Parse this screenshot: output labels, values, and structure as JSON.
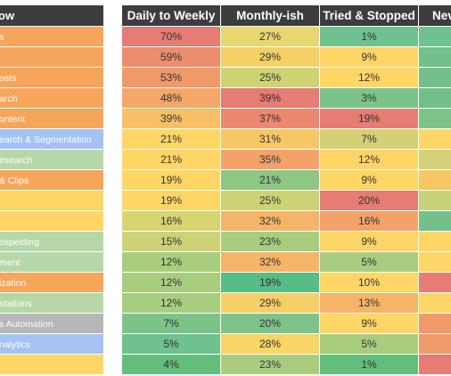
{
  "chart_data": {
    "type": "heatmap",
    "left_header": "ow",
    "columns": [
      "Daily to Weekly",
      "Monthly-ish",
      "Tried & Stopped",
      "Nev"
    ],
    "rows": [
      {
        "label": "s",
        "values": [
          "70%",
          "27%",
          "1%",
          ""
        ],
        "colors": [
          "#e67c73",
          "#e8d671",
          "#6fc190",
          "#6fc190"
        ],
        "label_color": "#f5a65b"
      },
      {
        "label": "",
        "values": [
          "59%",
          "29%",
          "9%",
          ""
        ],
        "colors": [
          "#ee8d6e",
          "#f5d067",
          "#ffd666",
          "#73c08a"
        ],
        "label_color": "#f5a65b"
      },
      {
        "label": "osts",
        "values": [
          "53%",
          "25%",
          "12%",
          ""
        ],
        "colors": [
          "#f09a6a",
          "#cfd373",
          "#ffd666",
          "#73c08a"
        ],
        "label_color": "#f5a65b"
      },
      {
        "label": "arch",
        "values": [
          "48%",
          "39%",
          "3%",
          ""
        ],
        "colors": [
          "#f4a768",
          "#e67c73",
          "#7cc38a",
          "#73c08a"
        ],
        "label_color": "#f5a65b"
      },
      {
        "label": "ontent",
        "values": [
          "39%",
          "37%",
          "19%",
          ""
        ],
        "colors": [
          "#f9bf66",
          "#ec886f",
          "#e67c73",
          "#7ec48a"
        ],
        "label_color": "#f5a65b"
      },
      {
        "label": "earch & Segmentation",
        "values": [
          "21%",
          "31%",
          "7%",
          ""
        ],
        "colors": [
          "#ffd666",
          "#f7c766",
          "#d4d073",
          "#ffd666"
        ],
        "label_color": "#a4c2f4"
      },
      {
        "label": "esearch",
        "values": [
          "21%",
          "35%",
          "12%",
          ""
        ],
        "colors": [
          "#ffd666",
          "#f4a368",
          "#ffd666",
          "#d6d27a"
        ],
        "label_color": "#b6d7a8"
      },
      {
        "label": "& Clips",
        "values": [
          "19%",
          "21%",
          "9%",
          ""
        ],
        "colors": [
          "#ffd666",
          "#8ec684",
          "#ffd666",
          "#f7c766"
        ],
        "label_color": "#f5a65b"
      },
      {
        "label": "",
        "values": [
          "19%",
          "25%",
          "20%",
          ""
        ],
        "colors": [
          "#ffd666",
          "#cdd374",
          "#e67c73",
          "#c9d179"
        ],
        "label_color": "#ffd666"
      },
      {
        "label": "",
        "values": [
          "16%",
          "32%",
          "16%",
          ""
        ],
        "colors": [
          "#d8d470",
          "#f5b467",
          "#f4a368",
          "#73c08a"
        ],
        "label_color": "#ffd666"
      },
      {
        "label": "ospecting",
        "values": [
          "15%",
          "23%",
          "9%",
          ""
        ],
        "colors": [
          "#cdd374",
          "#a9cd7e",
          "#ffd666",
          "#ffd666"
        ],
        "label_color": "#b6d7a8"
      },
      {
        "label": "ment",
        "values": [
          "12%",
          "32%",
          "5%",
          ""
        ],
        "colors": [
          "#a9cd7e",
          "#f5b467",
          "#a9cd7e",
          "#ffd666"
        ],
        "label_color": "#b6d7a8"
      },
      {
        "label": "ization",
        "values": [
          "12%",
          "19%",
          "10%",
          ""
        ],
        "colors": [
          "#a9cd7e",
          "#56bc88",
          "#ffd666",
          "#e67c73"
        ],
        "label_color": "#f5a65b"
      },
      {
        "label": "ntations",
        "values": [
          "12%",
          "29%",
          "13%",
          ""
        ],
        "colors": [
          "#a9cd7e",
          "#f5d067",
          "#f6b466",
          "#ffd666"
        ],
        "label_color": "#b6d7a8"
      },
      {
        "label": "s Automation",
        "values": [
          "7%",
          "20%",
          "9%",
          ""
        ],
        "colors": [
          "#7cc38a",
          "#7ec48a",
          "#ffd666",
          "#f09a6a"
        ],
        "label_color": "#b7b7b7"
      },
      {
        "label": "nalytics",
        "values": [
          "5%",
          "28%",
          "5%",
          ""
        ],
        "colors": [
          "#6fc190",
          "#f7d567",
          "#a9cd7e",
          "#f09a6a"
        ],
        "label_color": "#a4c2f4"
      },
      {
        "label": "",
        "values": [
          "4%",
          "23%",
          "1%",
          ""
        ],
        "colors": [
          "#63be7b",
          "#a9cd7e",
          "#63be7b",
          "#e67c73"
        ],
        "label_color": "#ffd666"
      }
    ],
    "colors": {
      "header_bg": "#3d3d3d",
      "header_text": "#ffffff",
      "cell_text": "#333333",
      "label_text": "#ffffff"
    }
  }
}
